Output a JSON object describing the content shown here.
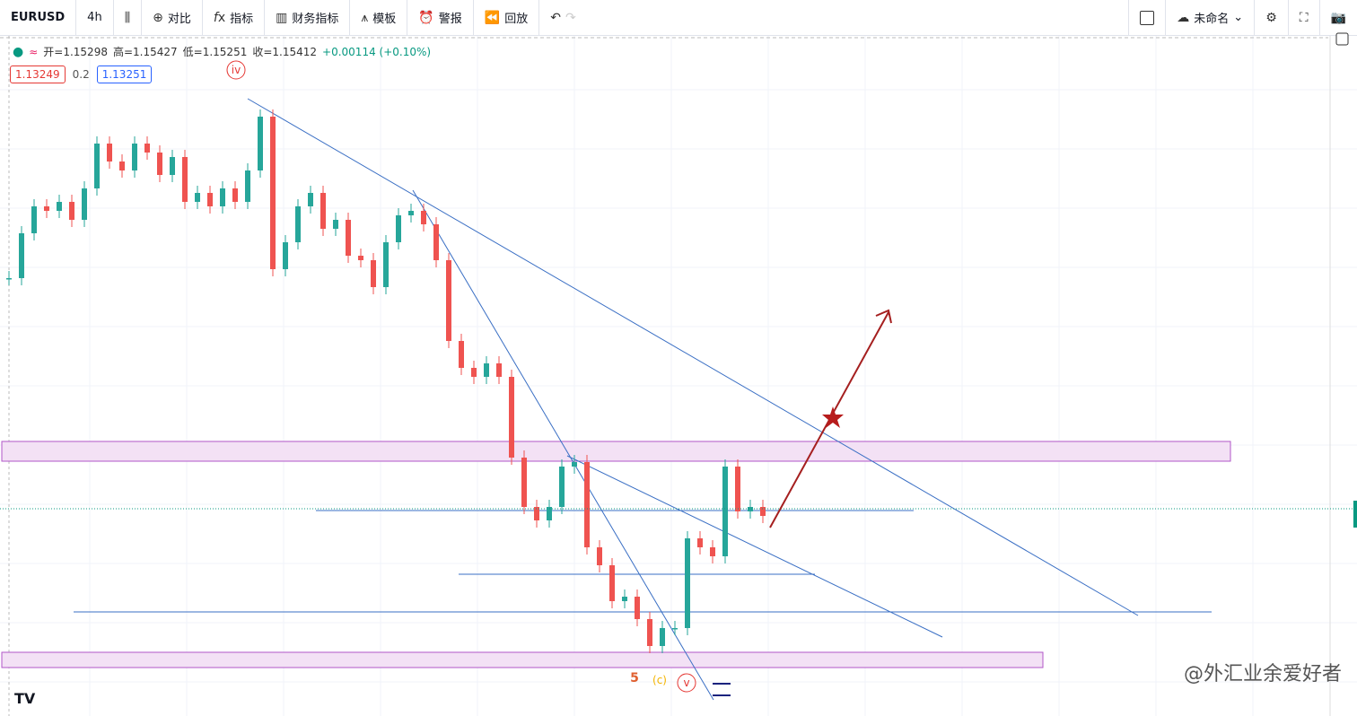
{
  "toolbar": {
    "symbol": "EURUSD",
    "interval": "4h",
    "items": [
      "对比",
      "指标",
      "财务指标",
      "模板",
      "警报",
      "回放"
    ],
    "layout_name": "未命名"
  },
  "legend": {
    "ohlc": [
      "开=1.15298",
      "高=1.15427",
      "低=1.15251",
      "收=1.15412"
    ],
    "change": "+0.00114 (+0.10%)",
    "bid": "1.13249",
    "spread": "0.2",
    "ask": "1.13251"
  },
  "chart": {
    "ylim": [
      1.14257,
      1.18047
    ],
    "closes": [
      1.16697,
      1.16947,
      1.17097,
      1.17072,
      1.17122,
      1.17022,
      1.17197,
      1.17447,
      1.17347,
      1.17297,
      1.17447,
      1.17397,
      1.17272,
      1.17372,
      1.17122,
      1.17172,
      1.17097,
      1.17197,
      1.17122,
      1.17297,
      1.17597,
      1.16747,
      1.16897,
      1.17097,
      1.17172,
      1.16972,
      1.17022,
      1.16822,
      1.16797,
      1.16647,
      1.16897,
      1.17047,
      1.17072,
      1.16997,
      1.16797,
      1.16347,
      1.16197,
      1.16147,
      1.16222,
      1.16147,
      1.15697,
      1.15422,
      1.15347,
      1.15422,
      1.15647,
      1.15672,
      1.15197,
      1.15097,
      1.14897,
      1.14922,
      1.14797,
      1.14647,
      1.14747,
      1.14747,
      1.15247,
      1.15197,
      1.15147,
      1.15647,
      1.15397,
      1.15422,
      1.15372
    ]
  },
  "annotations": {
    "wave_iv": "iv",
    "wave_5": "5",
    "wave_c": "(c)",
    "wave_v": "v"
  },
  "watermark": "@外汇业余爱好者"
}
